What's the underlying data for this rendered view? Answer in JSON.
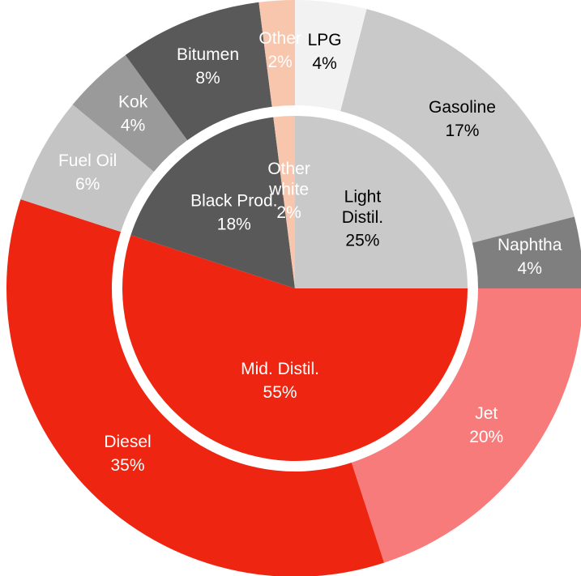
{
  "chart_data": {
    "type": "sunburst",
    "rings": [
      {
        "categories": [
          "Light\nDistil.",
          "Mid. Distil.",
          "Black Prod.",
          "Other\nwhite"
        ],
        "values": [
          25,
          55,
          18,
          2
        ],
        "value_labels": [
          "25%",
          "55%",
          "18%",
          "2%"
        ],
        "colors": [
          "#c9c9c9",
          "#ee2510",
          "#595959",
          "#f8c6ad"
        ],
        "label_colors": [
          "#000000",
          "#ffffff",
          "#ffffff",
          "#ffffff"
        ]
      },
      {
        "categories": [
          "LPG",
          "Gasoline",
          "Naphtha",
          "Jet",
          "Diesel",
          "Fuel Oil",
          "Kok",
          "Bitumen",
          "Other"
        ],
        "values": [
          4,
          17,
          4,
          20,
          35,
          6,
          4,
          8,
          2
        ],
        "value_labels": [
          "4%",
          "17%",
          "4%",
          "20%",
          "35%",
          "6%",
          "4%",
          "8%",
          "2%"
        ],
        "colors": [
          "#f2f2f2",
          "#c9c9c9",
          "#7f7f7f",
          "#f87b7b",
          "#ee2510",
          "#c4c4c4",
          "#9a9a9a",
          "#595959",
          "#f8c6ad"
        ],
        "label_colors": [
          "#000000",
          "#000000",
          "#ffffff",
          "#ffffff",
          "#ffffff",
          "#ffffff",
          "#ffffff",
          "#ffffff",
          "#ffffff"
        ]
      }
    ]
  }
}
